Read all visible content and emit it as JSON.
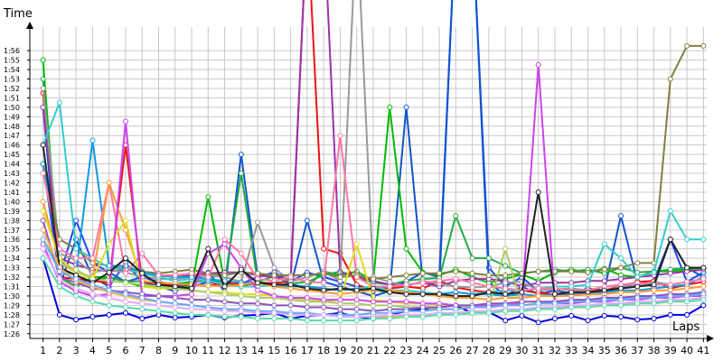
{
  "chart_data": {
    "type": "line",
    "xlabel": "Laps",
    "ylabel": "Time",
    "x": [
      1,
      2,
      3,
      4,
      5,
      6,
      7,
      8,
      9,
      10,
      11,
      12,
      13,
      14,
      15,
      16,
      17,
      18,
      19,
      20,
      21,
      22,
      23,
      24,
      25,
      26,
      27,
      28,
      29,
      30,
      31,
      32,
      33,
      34,
      35,
      36,
      37,
      38,
      39,
      40,
      41
    ],
    "xlim": [
      0.2,
      41.2
    ],
    "ylim": [
      85.5,
      118.5
    ],
    "y_tick_labels": [
      "1:26",
      "1:27",
      "1:28",
      "1:29",
      "1:30",
      "1:31",
      "1:32",
      "1:33",
      "1:34",
      "1:35",
      "1:36",
      "1:37",
      "1:38",
      "1:39",
      "1:40",
      "1:41",
      "1:42",
      "1:43",
      "1:44",
      "1:45",
      "1:46",
      "1:47",
      "1:48",
      "1:49",
      "1:50",
      "1:51",
      "1:52",
      "1:53",
      "1:54",
      "1:55",
      "1:56"
    ],
    "y_tick_values": [
      86,
      87,
      88,
      89,
      90,
      91,
      92,
      93,
      94,
      95,
      96,
      97,
      98,
      99,
      100,
      101,
      102,
      103,
      104,
      105,
      106,
      107,
      108,
      109,
      110,
      111,
      112,
      113,
      114,
      115,
      116
    ],
    "x_tick_labels": [
      "1",
      "2",
      "3",
      "4",
      "5",
      "6",
      "7",
      "8",
      "9",
      "10",
      "11",
      "12",
      "13",
      "14",
      "15",
      "16",
      "17",
      "18",
      "19",
      "20",
      "21",
      "22",
      "23",
      "24",
      "25",
      "26",
      "27",
      "28",
      "29",
      "30",
      "31",
      "32",
      "33",
      "34",
      "35",
      "36",
      "37",
      "38",
      "39",
      "40",
      "41"
    ],
    "grid": true,
    "legend": "none",
    "series": [
      {
        "color": "#0000dd",
        "values": [
          94,
          88,
          87.5,
          87.8,
          88,
          88.2,
          87.6,
          88,
          87.7,
          87.8,
          88,
          87.7,
          87.9,
          88,
          88.2,
          87.6,
          87.9,
          88,
          88.2,
          87.8,
          87.6,
          88,
          88.4,
          88.6,
          88.8,
          89,
          88.2,
          88.3,
          87.4,
          87.9,
          87.2,
          87.6,
          87.9,
          87.4,
          87.9,
          87.8,
          87.5,
          87.6,
          88,
          88,
          89
        ]
      },
      {
        "color": "#2244ff",
        "values": [
          104,
          92,
          98,
          93.5,
          92.5,
          91.5,
          92,
          91.5,
          91.2,
          91,
          91.5,
          91.2,
          91.3,
          92,
          92.5,
          91.5,
          92.5,
          92,
          91.5,
          91,
          90.5,
          91,
          91.5,
          92.5,
          92,
          130,
          130,
          93,
          91,
          92,
          90.5,
          90,
          90.2,
          90.2,
          90.4,
          90.8,
          91.2,
          91.6,
          96,
          91.5,
          92.5
        ]
      },
      {
        "color": "#1155cc",
        "values": [
          110,
          91,
          96,
          92,
          91,
          93.5,
          91.5,
          91,
          90.5,
          91.5,
          92.5,
          90.5,
          105,
          92,
          92.5,
          91,
          98,
          91.5,
          91,
          90.5,
          90,
          90.5,
          110,
          91.5,
          91,
          130,
          130,
          91.5,
          90,
          91,
          90.2,
          90.6,
          90.3,
          90.8,
          90.6,
          98.5,
          91.5,
          91,
          96,
          93,
          92
        ]
      },
      {
        "color": "#00bb00",
        "values": [
          115,
          92,
          91,
          92,
          92,
          91.5,
          91,
          91,
          91.3,
          91,
          100.5,
          91.5,
          91,
          91.5,
          91.3,
          91,
          91,
          92.6,
          92.2,
          92.6,
          91.6,
          110,
          95,
          92.5,
          92.2,
          92.8,
          92,
          91.4,
          91.8,
          92.3,
          91.6,
          92.5,
          92.8,
          92.5,
          92.9,
          92.2,
          92,
          92.6,
          92.6,
          92.8,
          93
        ]
      },
      {
        "color": "#22aa44",
        "values": [
          113,
          92.8,
          92.2,
          91.5,
          92,
          91.5,
          91.6,
          91.2,
          91.3,
          91.5,
          91.6,
          91.5,
          103,
          91.5,
          92.1,
          91.3,
          91.5,
          92.2,
          92.6,
          92,
          91.4,
          91.2,
          91.6,
          91.8,
          91.9,
          98.5,
          94,
          94,
          93.2,
          92.4,
          92.6,
          92.8,
          92.6,
          92.8,
          92.4,
          93,
          92.5,
          92.6,
          92.8,
          93,
          93
        ]
      },
      {
        "color": "#ee1111",
        "values": [
          111.5,
          92,
          91.8,
          91.6,
          91.4,
          106,
          91.5,
          91.3,
          91.2,
          91.2,
          91.1,
          91.4,
          91.2,
          91.3,
          91.4,
          91.5,
          130,
          95,
          94.5,
          91.2,
          90.6,
          90.8,
          91,
          90.8,
          91.6,
          90.9,
          90.6,
          90.4,
          90.6,
          90.6,
          90.3,
          90.2,
          90,
          90.6,
          90.6,
          91,
          91.5,
          91.6,
          90.8,
          91.2,
          91.5
        ]
      },
      {
        "color": "#9933aa",
        "values": [
          110,
          94,
          93.3,
          92.8,
          92.6,
          92.8,
          92.4,
          92.2,
          92,
          92.2,
          92.4,
          92.5,
          92.5,
          92.2,
          92,
          91.8,
          130,
          130,
          92.5,
          92,
          91.6,
          91.2,
          91.2,
          91.4,
          91,
          91.6,
          91.8,
          91.8,
          91.6,
          91,
          91.4,
          91.4,
          91.4,
          91.6,
          91.6,
          91.8,
          92,
          92.2,
          92.4,
          92.6,
          92.8
        ]
      },
      {
        "color": "#999999",
        "values": [
          112,
          94.5,
          93.8,
          92.5,
          92.8,
          92.5,
          92,
          91.8,
          91.8,
          92,
          92.2,
          92,
          91.5,
          97.8,
          93,
          91.5,
          92,
          92.6,
          91.6,
          130,
          92,
          91.5,
          91,
          91.6,
          91.3,
          91,
          90.9,
          91,
          91.4,
          91.5,
          90.6,
          90.7,
          90.8,
          90.6,
          91,
          91,
          91.2,
          91.5,
          91.2,
          91.5,
          91.8
        ]
      },
      {
        "color": "#808040",
        "values": [
          104,
          96,
          95,
          93.5,
          93.2,
          92.8,
          92.6,
          92.4,
          92.6,
          92.8,
          92.4,
          92.2,
          92.5,
          92.4,
          92.2,
          92.2,
          92.2,
          92.4,
          92,
          92.2,
          91.8,
          92,
          92.2,
          92.4,
          92.4,
          92.6,
          92.4,
          92.2,
          92.2,
          92.4,
          92.6,
          92.6,
          92.6,
          92.5,
          92.8,
          93,
          93.5,
          93.5,
          113,
          116.5,
          116.5
        ]
      },
      {
        "color": "#33cccc",
        "values": [
          106,
          110.5,
          95,
          94,
          93,
          92.8,
          92.4,
          92,
          91.6,
          91.8,
          91.6,
          91.2,
          91,
          91,
          91.2,
          91.2,
          91,
          90.8,
          90.6,
          90.8,
          91,
          90.6,
          90.6,
          90.4,
          90.2,
          90.4,
          90.2,
          90.4,
          90.6,
          90.6,
          90.8,
          91,
          91,
          91.2,
          95.5,
          94,
          92,
          92.5,
          99,
          96,
          96
        ]
      },
      {
        "color": "#1199dd",
        "values": [
          104,
          94,
          92.5,
          106.5,
          93.2,
          93.2,
          92.5,
          92.2,
          92,
          92,
          91.8,
          91.6,
          91.4,
          91.4,
          91.2,
          91,
          91,
          90.8,
          90.6,
          90.8,
          90.6,
          90.4,
          90.4,
          90.2,
          90.2,
          90.4,
          90.2,
          90.2,
          90,
          90.2,
          90,
          90.2,
          90.2,
          90.4,
          90.4,
          90.6,
          90.6,
          90.8,
          91,
          91.2,
          92
        ]
      },
      {
        "color": "#ff77aa",
        "values": [
          103,
          95,
          94,
          94,
          102,
          92.4,
          94.5,
          92.2,
          92.2,
          92.4,
          92,
          96,
          94.5,
          91.8,
          91.6,
          92,
          91.5,
          91.4,
          107,
          92,
          91,
          91,
          91.2,
          91.4,
          91.6,
          91.8,
          91.4,
          91,
          90.8,
          90.6,
          90.8,
          90.8,
          90.6,
          90.6,
          91,
          91.2,
          91.4,
          91.2,
          91.2,
          91.5,
          91.8
        ]
      },
      {
        "color": "#ff9933",
        "values": [
          100,
          93.5,
          92.5,
          92,
          102,
          97,
          91.6,
          91.4,
          91.3,
          91.2,
          91.1,
          91,
          91.2,
          91.4,
          91,
          90.8,
          90.6,
          90.4,
          90.2,
          90.4,
          90.6,
          90.6,
          90.4,
          90.2,
          90,
          89.8,
          89.8,
          89.6,
          89.8,
          89.8,
          90,
          90,
          90,
          90.2,
          90.2,
          90.4,
          90.4,
          90.6,
          90.6,
          90.8,
          91
        ]
      },
      {
        "color": "#dddd22",
        "values": [
          99,
          94,
          92.5,
          91.8,
          95.5,
          98,
          91,
          90.8,
          90.8,
          90.6,
          90.4,
          90.4,
          90.2,
          90.2,
          90,
          89.8,
          89.6,
          89.4,
          89.6,
          95.5,
          89.6,
          89.4,
          89.2,
          89.2,
          89,
          89,
          88.8,
          88.8,
          89,
          89,
          89.2,
          89.4,
          89.4,
          89.6,
          89.6,
          89.8,
          89.8,
          90,
          90,
          90.2,
          90.4
        ]
      },
      {
        "color": "#aacc66",
        "values": [
          96,
          93.5,
          92.8,
          91.8,
          91.6,
          91.4,
          91.2,
          91,
          90.8,
          90.6,
          90.4,
          90.2,
          90,
          89.8,
          89.8,
          89.6,
          89.4,
          89.4,
          89.2,
          89.2,
          89,
          89,
          88.8,
          88.8,
          88.6,
          88.6,
          88.8,
          88.8,
          95,
          89,
          89.2,
          89.2,
          89.4,
          89.4,
          89.6,
          89.6,
          89.8,
          89.8,
          90,
          90,
          90.2
        ]
      },
      {
        "color": "#cc44ee",
        "values": [
          95.5,
          91.5,
          90.5,
          90,
          90.2,
          108.5,
          90,
          90,
          90,
          90.2,
          94.5,
          95.5,
          93,
          90.6,
          90,
          89.8,
          89.8,
          89.6,
          89.6,
          89.6,
          89.4,
          89.4,
          89.4,
          89.2,
          89.2,
          89,
          89,
          89,
          89,
          89.2,
          114.5,
          89.2,
          89.2,
          89.4,
          89.4,
          89.6,
          89.6,
          89.8,
          89.8,
          90,
          90
        ]
      },
      {
        "color": "#222222",
        "values": [
          106,
          93,
          92.2,
          91.4,
          92.5,
          94,
          92.4,
          91.2,
          91,
          90.8,
          95,
          91,
          92.8,
          91.4,
          91.2,
          91.2,
          90.8,
          90.6,
          90.8,
          90.6,
          90.8,
          90.4,
          90.2,
          90.2,
          90.2,
          90,
          90,
          90.4,
          90.2,
          90.4,
          101,
          90.2,
          90.4,
          90.4,
          90.6,
          90.8,
          91,
          91.2,
          96,
          93,
          93
        ]
      },
      {
        "color": "#8855bb",
        "values": [
          98,
          92,
          91.4,
          90.8,
          90.6,
          90.4,
          90.2,
          90,
          89.8,
          89.6,
          89.6,
          89.4,
          89.2,
          89.2,
          89,
          89,
          88.8,
          88.8,
          88.6,
          88.6,
          88.4,
          88.6,
          88.6,
          88.8,
          88.8,
          89,
          89,
          89.2,
          89.2,
          89.4,
          89.4,
          89.4,
          89.6,
          89.6,
          89.8,
          89.8,
          90,
          90,
          90.2,
          90.2,
          90.4
        ]
      },
      {
        "color": "#ffaa55",
        "values": [
          97,
          93,
          91.6,
          91,
          90.4,
          90,
          89.6,
          89.4,
          89.2,
          89,
          88.8,
          88.6,
          88.4,
          88.4,
          88.2,
          88.2,
          88,
          88,
          88,
          87.8,
          87.8,
          87.8,
          88,
          88,
          88,
          88.2,
          88.2,
          88.4,
          88.4,
          88.6,
          88.6,
          88.8,
          88.8,
          89,
          89,
          89.2,
          89.2,
          89.4,
          89.4,
          89.6,
          89.8
        ]
      },
      {
        "color": "#66aaff",
        "values": [
          96,
          92.6,
          91.8,
          91.2,
          90.6,
          90.2,
          89.8,
          89.4,
          89.2,
          89,
          88.8,
          88.6,
          88.6,
          88.4,
          88.4,
          88.2,
          88.2,
          88,
          88,
          88,
          88.2,
          88.2,
          88.4,
          88.4,
          88.6,
          88.6,
          88.8,
          88.8,
          89,
          89,
          89.2,
          89.2,
          89.4,
          89.4,
          89.6,
          89.6,
          89.8,
          89.8,
          90,
          90,
          90.2
        ]
      },
      {
        "color": "#ddaaff",
        "values": [
          95,
          91.8,
          90.8,
          90.2,
          89.8,
          89.4,
          89.2,
          89,
          88.8,
          88.6,
          88.6,
          88.4,
          88.4,
          88.2,
          88.2,
          88,
          88,
          88,
          87.8,
          87.8,
          87.8,
          88,
          88,
          88,
          88.2,
          88.2,
          88.4,
          88.4,
          88.6,
          88.6,
          88.8,
          88.8,
          89,
          89,
          89.2,
          89.2,
          89.4,
          89.4,
          89.6,
          89.6,
          89.8
        ]
      },
      {
        "color": "#55ddaa",
        "values": [
          94,
          91,
          90,
          89.4,
          89,
          88.8,
          88.6,
          88.4,
          88.2,
          88,
          88,
          87.8,
          87.8,
          87.6,
          87.6,
          87.6,
          87.4,
          87.4,
          87.4,
          87.4,
          87.6,
          87.6,
          87.8,
          87.8,
          88,
          88,
          88.2,
          88.2,
          88.4,
          88.4,
          88.6,
          88.6,
          88.8,
          88.8,
          89,
          89,
          89.2,
          89.2,
          89.4,
          89.4,
          89.6
        ]
      }
    ]
  }
}
